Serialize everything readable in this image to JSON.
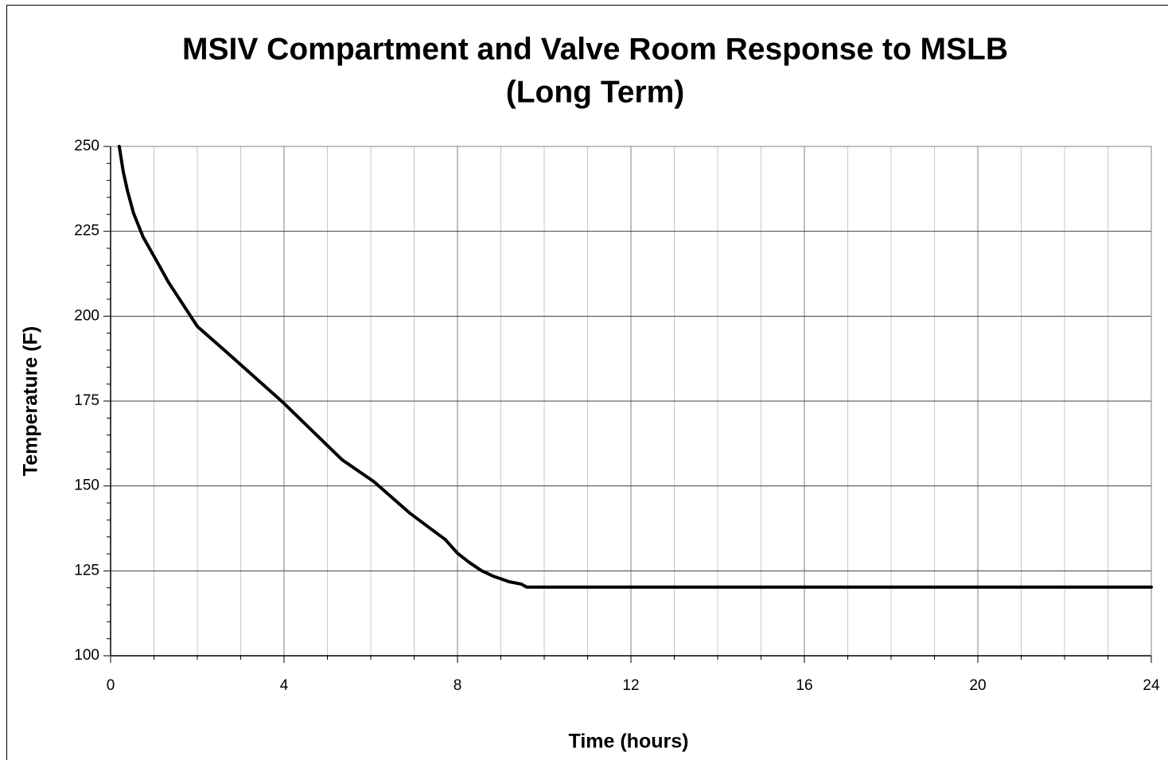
{
  "chart_data": {
    "type": "line",
    "title": [
      "MSIV Compartment and Valve Room Response to MSLB",
      "(Long Term)"
    ],
    "xlabel": "Time (hours)",
    "ylabel": "Temperature (F)",
    "x": [
      0.2,
      0.29,
      0.39,
      0.53,
      0.75,
      1.03,
      1.34,
      2.0,
      2.73,
      3.96,
      5.34,
      6.07,
      6.9,
      7.72,
      8.0,
      8.28,
      8.55,
      8.83,
      9.19,
      9.47,
      9.6,
      24
    ],
    "series": [
      {
        "name": "Temperature",
        "color": "#000000",
        "values": [
          250,
          242.7,
          236.9,
          230.3,
          223.3,
          217,
          209.9,
          197,
          188.8,
          174.8,
          157.7,
          151.3,
          142,
          134.2,
          130.2,
          127.4,
          125.1,
          123.4,
          121.8,
          121.1,
          120.2,
          120.2
        ]
      }
    ],
    "xlim": [
      0,
      24
    ],
    "xticks": [
      0,
      4,
      8,
      12,
      16,
      20,
      24
    ],
    "xminorticks": [
      1,
      2,
      3,
      5,
      6,
      7,
      9,
      10,
      11,
      13,
      14,
      15,
      17,
      18,
      19,
      21,
      22,
      23
    ],
    "ylim": [
      100,
      250
    ],
    "yticks": [
      100,
      125,
      150,
      175,
      200,
      225,
      250
    ],
    "yminorticks": [
      105,
      110,
      115,
      120,
      130,
      135,
      140,
      145,
      155,
      160,
      165,
      170,
      180,
      185,
      190,
      195,
      205,
      210,
      215,
      220,
      230,
      235,
      240,
      245
    ],
    "grid": true
  }
}
